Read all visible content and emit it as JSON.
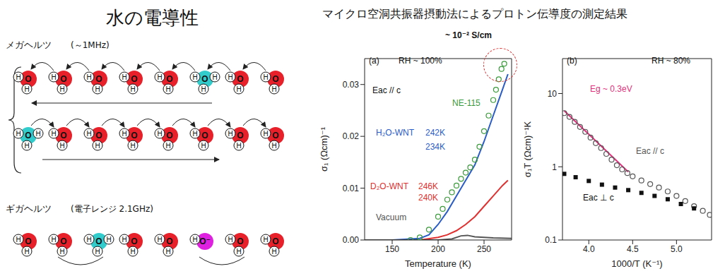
{
  "title": "水の電導性",
  "subtitle": "マイクロ空洞共振器摂動法によるプロトン伝導度の測定結果",
  "diagram": {
    "hydrogen_label": "H",
    "sections": [
      {
        "label": "メガヘルツ",
        "frequency": "(～1MHz)",
        "rows": [
          {
            "arrow": "left",
            "molecules": [
              {
                "center": "O",
                "color": "#e8202a",
                "hydrogens": 2
              },
              {
                "center": "O",
                "color": "#e8202a",
                "hydrogens": 2
              },
              {
                "center": "O",
                "color": "#e8202a",
                "hydrogens": 2
              },
              {
                "center": "O",
                "color": "#e8202a",
                "hydrogens": 2
              },
              {
                "center": "O",
                "color": "#e8202a",
                "hydrogens": 2
              },
              {
                "center": "O",
                "color": "#33cccc",
                "hydrogens": 3
              },
              {
                "center": "O",
                "color": "#e8202a",
                "hydrogens": 2
              },
              {
                "center": "O",
                "color": "#e8202a",
                "hydrogens": 2
              }
            ]
          },
          {
            "arrow": "right",
            "molecules": [
              {
                "center": "O",
                "color": "#33cccc",
                "hydrogens": 3
              },
              {
                "center": "O",
                "color": "#e8202a",
                "hydrogens": 2
              },
              {
                "center": "O",
                "color": "#e8202a",
                "hydrogens": 2
              },
              {
                "center": "O",
                "color": "#e8202a",
                "hydrogens": 2
              },
              {
                "center": "O",
                "color": "#e8202a",
                "hydrogens": 2
              },
              {
                "center": "O",
                "color": "#e8202a",
                "hydrogens": 2
              },
              {
                "center": "O",
                "color": "#e8202a",
                "hydrogens": 2
              },
              {
                "center": "O",
                "color": "#e8202a",
                "hydrogens": 2
              }
            ]
          }
        ]
      },
      {
        "label": "ギガヘルツ",
        "frequency": "(電子レンジ 2.1GHz)",
        "rows": [
          {
            "molecules": [
              {
                "center": "O",
                "color": "#e8202a",
                "hydrogens": 2
              },
              {
                "center": "O",
                "color": "#e8202a",
                "hydrogens": 2
              },
              {
                "center": "O",
                "color": "#33cccc",
                "hydrogens": 3
              },
              {
                "center": "O",
                "color": "#e8202a",
                "hydrogens": 2
              },
              {
                "center": "O",
                "color": "#e8202a",
                "hydrogens": 2
              },
              {
                "center": "O⁻",
                "color": "#e020e0",
                "hydrogens": 1
              },
              {
                "center": "O",
                "color": "#e8202a",
                "hydrogens": 2
              },
              {
                "center": "O",
                "color": "#e8202a",
                "hydrogens": 2
              }
            ]
          }
        ]
      }
    ]
  },
  "chart_data": [
    {
      "type": "line",
      "title": "(a)",
      "x_label": "Temperature (K)",
      "y_label": "σ₁ (Ωcm)⁻¹",
      "xlim": [
        120,
        280
      ],
      "xticks": [
        150,
        200,
        250
      ],
      "ylim": [
        0,
        0.035
      ],
      "yticks": [
        {
          "value": 0,
          "label": "0.00"
        },
        0.01,
        0.02,
        0.03
      ],
      "grid": false,
      "annotations": [
        "RH ~ 100%",
        "Eac // c",
        "~ 10⁻² S/cm"
      ],
      "series": [
        {
          "name": "NE-115",
          "type": "scatter",
          "marker": "circle",
          "color": "#3a9a3a",
          "x": [
            170,
            180,
            190,
            200,
            205,
            210,
            215,
            220,
            225,
            230,
            235,
            240,
            245,
            250,
            255,
            260,
            263,
            266,
            269,
            272
          ],
          "values": [
            0,
            0.0005,
            0.002,
            0.0045,
            0.006,
            0.0078,
            0.0092,
            0.0105,
            0.0118,
            0.013,
            0.014,
            0.0155,
            0.018,
            0.021,
            0.024,
            0.027,
            0.029,
            0.031,
            0.033,
            0.034
          ]
        },
        {
          "name": "H₂O-WNT",
          "type": "line",
          "marker": "none",
          "line_style": "solid",
          "color": "#2a5cc8",
          "x": [
            120,
            150,
            180,
            190,
            200,
            210,
            220,
            230,
            240,
            250,
            260,
            270,
            276
          ],
          "values": [
            0,
            0,
            0.0003,
            0.001,
            0.003,
            0.0055,
            0.0085,
            0.0115,
            0.0145,
            0.019,
            0.024,
            0.029,
            0.032
          ],
          "annotations": [
            "242K",
            "234K"
          ]
        },
        {
          "name": "D₂O-WNT",
          "type": "line",
          "marker": "none",
          "line_style": "solid",
          "color": "#e03030",
          "x": [
            120,
            180,
            200,
            210,
            220,
            230,
            240,
            250,
            260,
            270,
            276
          ],
          "values": [
            0,
            0,
            0.0005,
            0.001,
            0.0018,
            0.003,
            0.0045,
            0.0065,
            0.0085,
            0.0105,
            0.0115
          ],
          "annotations": [
            "246K",
            "240K"
          ]
        },
        {
          "name": "Vacuum",
          "type": "line",
          "marker": "none",
          "line_style": "solid",
          "color": "#555555",
          "x": [
            120,
            200,
            215,
            225,
            232,
            240,
            260,
            280
          ],
          "values": [
            0,
            0,
            0.0002,
            0.0008,
            0.0009,
            0.0006,
            0.0004,
            0.0003
          ]
        }
      ]
    },
    {
      "type": "scatter",
      "title": "(b)",
      "x_label": "1000/T (K⁻¹)",
      "y_label": "σ₁T (Ωcm)⁻¹K",
      "log": "y",
      "xlim": [
        3.7,
        5.4
      ],
      "xticks": [
        {
          "value": 4,
          "label": "4.0"
        },
        4.5,
        {
          "value": 5,
          "label": "5.0"
        }
      ],
      "ylim": [
        0.1,
        30
      ],
      "yticks": [
        0.1,
        1,
        10
      ],
      "grid": false,
      "annotations": [
        "RH ~ 80%"
      ],
      "series": [
        {
          "name": "Eac // c",
          "type": "scatter",
          "marker": "circle",
          "color": "#555555",
          "x": [
            3.72,
            3.78,
            3.84,
            3.9,
            3.96,
            4.02,
            4.08,
            4.14,
            4.2,
            4.26,
            4.32,
            4.38,
            4.44,
            4.5,
            4.6,
            4.7,
            4.8,
            4.9,
            5.0,
            5.1,
            5.2,
            5.3,
            5.38
          ],
          "values": [
            5.4,
            4.8,
            4.1,
            3.5,
            3.0,
            2.5,
            2.1,
            1.8,
            1.5,
            1.25,
            1.05,
            0.92,
            0.82,
            0.74,
            0.65,
            0.58,
            0.52,
            0.46,
            0.4,
            0.34,
            0.29,
            0.25,
            0.22
          ]
        },
        {
          "name": "Eac ⊥ c",
          "type": "scatter",
          "marker": "square",
          "color": "#111111",
          "x": [
            3.72,
            3.85,
            4.0,
            4.15,
            4.3,
            4.45,
            4.6,
            4.75,
            4.9,
            5.05,
            5.2
          ],
          "values": [
            0.8,
            0.72,
            0.64,
            0.57,
            0.52,
            0.48,
            0.44,
            0.4,
            0.36,
            0.31,
            0.27
          ]
        },
        {
          "name": "Eg ~ 0.3eV",
          "type": "line",
          "marker": "none",
          "line_style": "solid",
          "color": "#e0307a",
          "x": [
            3.72,
            4.45
          ],
          "values": [
            5.8,
            0.85
          ]
        }
      ]
    }
  ]
}
